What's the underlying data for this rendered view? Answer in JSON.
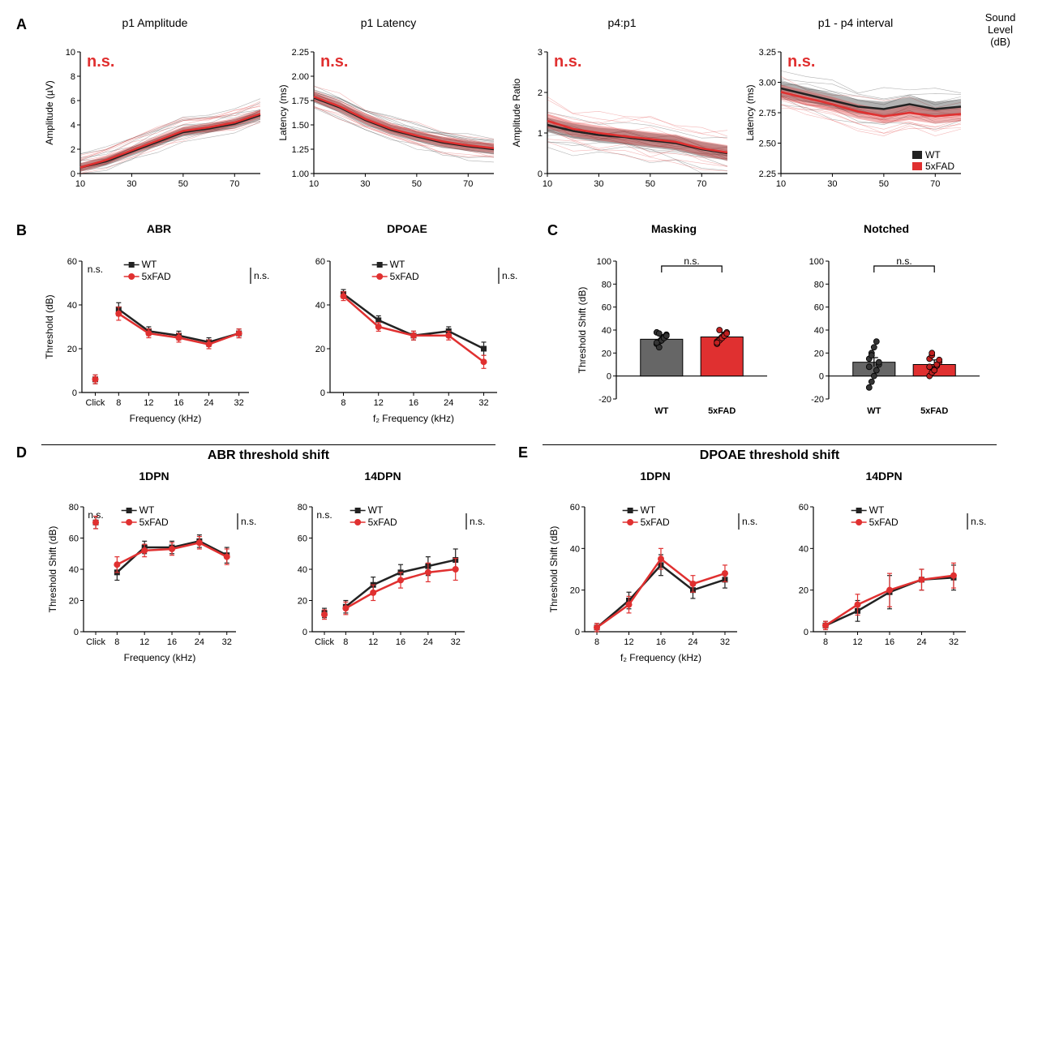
{
  "colors": {
    "wt": "#222222",
    "fad": "#e03030",
    "wt_light": "rgba(40,40,40,0.35)",
    "fad_light": "rgba(224,48,48,0.35)",
    "bar_wt": "#666666",
    "bar_fad": "#e03030",
    "bg": "#ffffff"
  },
  "groups": {
    "wt": "WT",
    "fad": "5xFAD"
  },
  "ns": "n.s.",
  "panelA": {
    "label": "A",
    "xaxis_label": "Sound Level (dB)",
    "x": [
      10,
      20,
      30,
      40,
      50,
      60,
      70,
      80
    ],
    "xticks": [
      10,
      30,
      50,
      70
    ],
    "legend": [
      "WT",
      "5xFAD"
    ],
    "charts": [
      {
        "title": "p1 Amplitude",
        "ylabel": "Amplitude (µV)",
        "ylim": [
          0,
          10
        ],
        "ytick_step": 2,
        "wt_mean": [
          0.5,
          1.0,
          1.8,
          2.6,
          3.4,
          3.7,
          4.1,
          4.8
        ],
        "fad_mean": [
          0.5,
          1.1,
          1.9,
          2.7,
          3.5,
          3.8,
          4.2,
          4.9
        ],
        "band": 0.35,
        "indiv_n": 10,
        "indiv_spread": 1.2
      },
      {
        "title": "p1 Latency",
        "ylabel": "Latency (ms)",
        "ylim": [
          1.0,
          2.25
        ],
        "ytick_step": 0.25,
        "wt_mean": [
          1.78,
          1.68,
          1.55,
          1.45,
          1.38,
          1.32,
          1.28,
          1.25
        ],
        "fad_mean": [
          1.79,
          1.69,
          1.56,
          1.46,
          1.39,
          1.33,
          1.29,
          1.26
        ],
        "band": 0.05,
        "indiv_n": 10,
        "indiv_spread": 0.12
      },
      {
        "title": "p4:p1",
        "ylabel": "Amplitude Ratio",
        "ylim": [
          0,
          3
        ],
        "ytick_step": 1,
        "wt_mean": [
          1.2,
          1.05,
          0.95,
          0.9,
          0.82,
          0.75,
          0.6,
          0.5
        ],
        "fad_mean": [
          1.3,
          1.1,
          1.0,
          0.92,
          0.85,
          0.78,
          0.62,
          0.52
        ],
        "band": 0.18,
        "indiv_n": 10,
        "indiv_spread": 0.55
      },
      {
        "title": "p1 - p4 interval",
        "ylabel": "Latency (ms)",
        "ylim": [
          2.25,
          3.25
        ],
        "ytick_step": 0.25,
        "wt_mean": [
          2.95,
          2.9,
          2.85,
          2.8,
          2.78,
          2.82,
          2.78,
          2.8
        ],
        "fad_mean": [
          2.92,
          2.87,
          2.82,
          2.76,
          2.72,
          2.75,
          2.72,
          2.74
        ],
        "band": 0.06,
        "indiv_n": 10,
        "indiv_spread": 0.15,
        "show_legend": true
      }
    ]
  },
  "panelB": {
    "label": "B",
    "charts": [
      {
        "title": "ABR",
        "ylabel": "Threshold (dB)",
        "xlabel": "Frequency (kHz)",
        "xcats": [
          "Click",
          "8",
          "12",
          "16",
          "24",
          "32"
        ],
        "ylim": [
          0,
          60
        ],
        "ytick_step": 20,
        "wt": [
          6,
          38,
          28,
          26,
          23,
          27
        ],
        "fad": [
          6,
          36,
          27,
          25,
          22,
          27
        ],
        "err": [
          2,
          3,
          2,
          2,
          2,
          2
        ],
        "click_ns": true
      },
      {
        "title": "DPOAE",
        "ylabel": "",
        "xlabel": "f₂ Frequency (kHz)",
        "xcats": [
          "8",
          "12",
          "16",
          "24",
          "32"
        ],
        "ylim": [
          0,
          60
        ],
        "ytick_step": 20,
        "wt": [
          45,
          33,
          26,
          28,
          20
        ],
        "fad": [
          44,
          30,
          26,
          26,
          14
        ],
        "err": [
          2,
          2,
          2,
          2,
          3
        ]
      }
    ]
  },
  "panelC": {
    "label": "C",
    "ylabel": "Threshold Shift (dB)",
    "ylim": [
      -20,
      100
    ],
    "ytick_step": 20,
    "charts": [
      {
        "title": "Masking",
        "wt_mean": 32,
        "fad_mean": 34,
        "wt_points": [
          28,
          30,
          32,
          34,
          36,
          38,
          25,
          31,
          33,
          35,
          29,
          37
        ],
        "fad_points": [
          30,
          32,
          34,
          36,
          38,
          28,
          31,
          33,
          35,
          37,
          29,
          40
        ]
      },
      {
        "title": "Notched",
        "wt_mean": 12,
        "fad_mean": 10,
        "wt_points": [
          -10,
          -5,
          0,
          5,
          10,
          15,
          20,
          25,
          30,
          12,
          8,
          18
        ],
        "fad_points": [
          0,
          3,
          6,
          9,
          12,
          15,
          18,
          5,
          10,
          14,
          8,
          20
        ]
      }
    ]
  },
  "panelD": {
    "label": "D",
    "section": "ABR threshold shift",
    "ylabel": "Threshold Shift (dB)",
    "xlabel": "Frequency (kHz)",
    "xcats": [
      "Click",
      "8",
      "12",
      "16",
      "24",
      "32"
    ],
    "ylim": [
      0,
      80
    ],
    "ytick_step": 20,
    "charts": [
      {
        "title": "1DPN",
        "wt": [
          70,
          38,
          54,
          54,
          58,
          49
        ],
        "fad": [
          70,
          43,
          52,
          53,
          57,
          48
        ],
        "err": [
          4,
          5,
          4,
          4,
          4,
          5
        ],
        "click_ns": true
      },
      {
        "title": "14DPN",
        "wt": [
          12,
          16,
          30,
          38,
          42,
          46
        ],
        "fad": [
          11,
          15,
          25,
          33,
          38,
          40
        ],
        "err": [
          3,
          4,
          5,
          5,
          6,
          7
        ],
        "click_ns": true
      }
    ]
  },
  "panelE": {
    "label": "E",
    "section": "DPOAE threshold shift",
    "ylabel": "Threshold Shift (dB)",
    "xlabel": "f₂ Frequency (kHz)",
    "xcats": [
      "8",
      "12",
      "16",
      "24",
      "32"
    ],
    "ylim": [
      0,
      60
    ],
    "ytick_step": 20,
    "charts": [
      {
        "title": "1DPN",
        "wt": [
          2,
          15,
          32,
          20,
          25
        ],
        "fad": [
          2,
          13,
          35,
          23,
          28
        ],
        "err": [
          2,
          4,
          5,
          4,
          4
        ]
      },
      {
        "title": "14DPN",
        "wt": [
          3,
          10,
          19,
          25,
          26
        ],
        "fad": [
          3,
          13,
          20,
          25,
          27
        ],
        "err": [
          2,
          5,
          8,
          5,
          6
        ]
      }
    ]
  }
}
